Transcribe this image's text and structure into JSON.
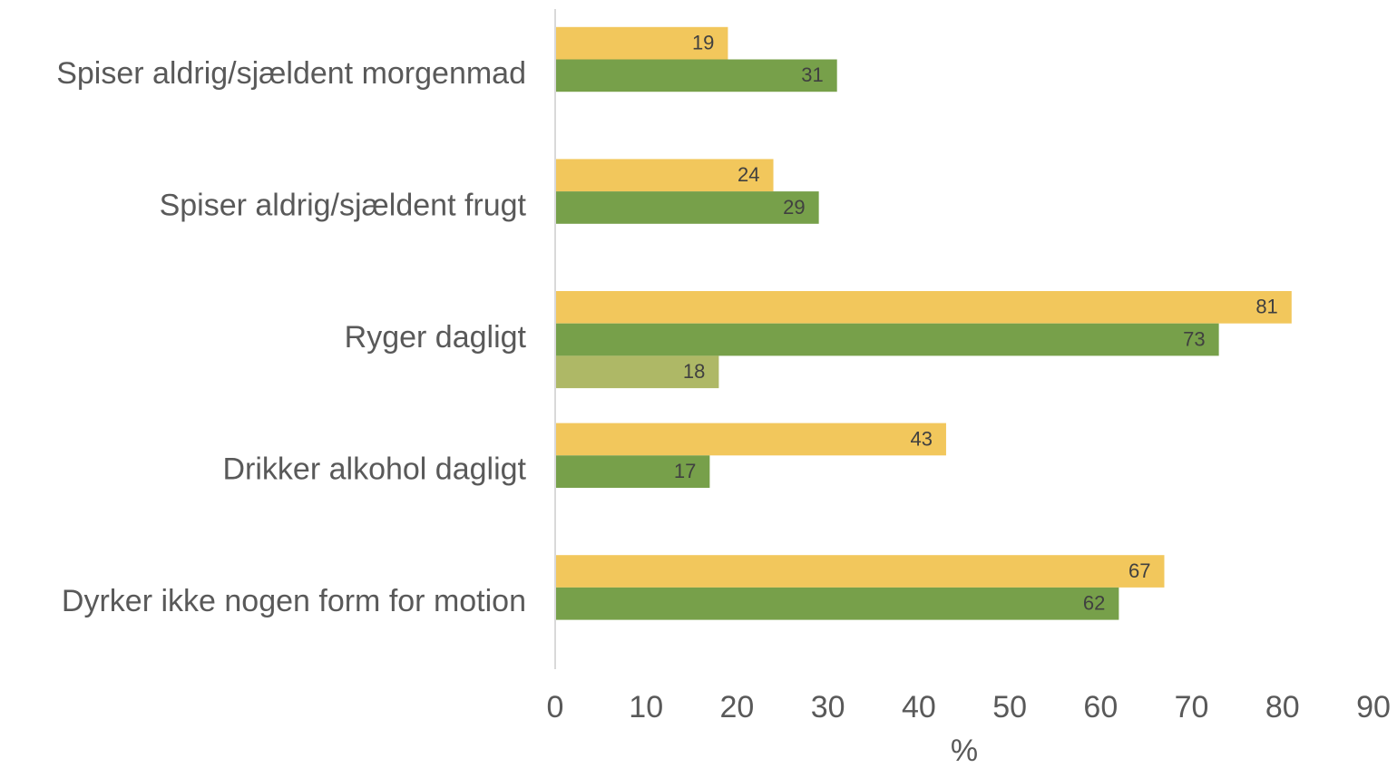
{
  "chart_data": {
    "type": "bar",
    "orientation": "horizontal",
    "categories": [
      "Spiser aldrig/sjældent morgenmad",
      "Spiser aldrig/sjældent frugt",
      "Ryger dagligt",
      "Drikker alkohol dagligt",
      "Dyrker ikke nogen form for motion"
    ],
    "series": [
      {
        "color": "#f2c75c",
        "values": [
          19,
          24,
          81,
          43,
          67
        ]
      },
      {
        "color": "#77a04a",
        "values": [
          31,
          29,
          73,
          17,
          62
        ]
      },
      {
        "color": "#aeb866",
        "values": [
          null,
          null,
          18,
          null,
          null
        ]
      }
    ],
    "xlabel": "%",
    "xlim": [
      0,
      90
    ],
    "xticks": [
      0,
      10,
      20,
      30,
      40,
      50,
      60,
      70,
      80,
      90
    ],
    "grid": false
  }
}
